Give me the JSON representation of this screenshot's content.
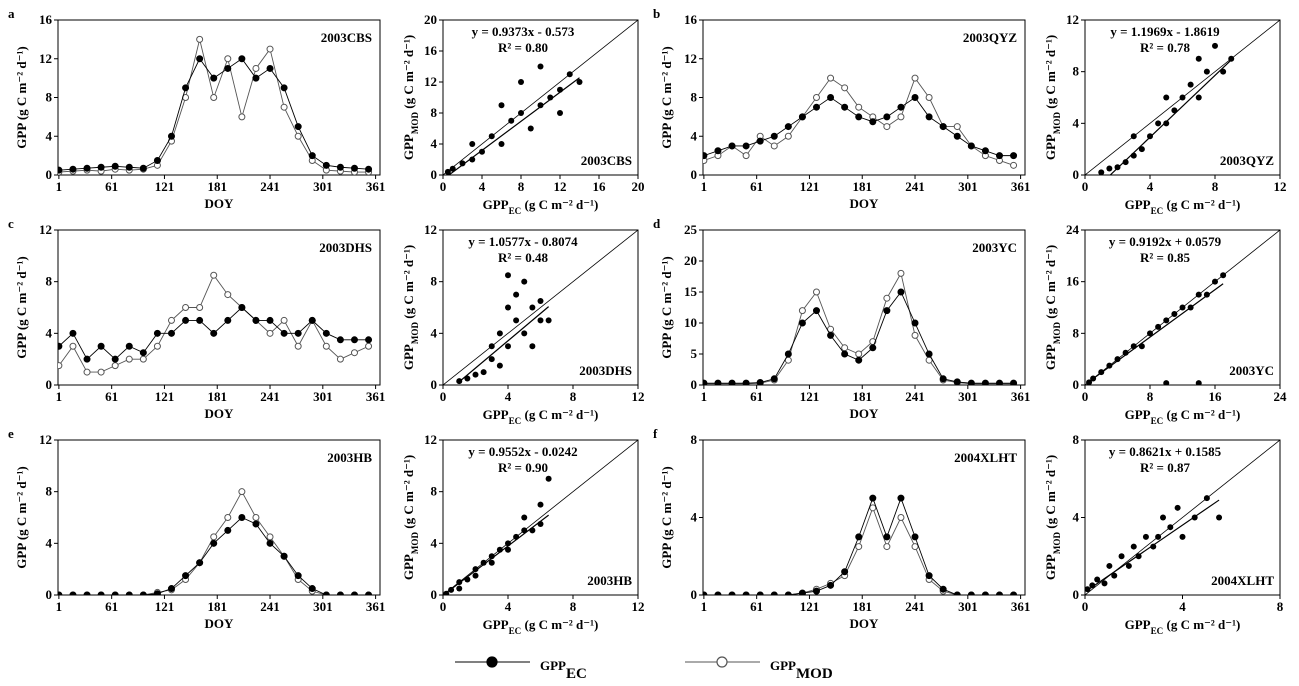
{
  "chart_data": [
    {
      "type": "line",
      "panel_label": "a",
      "site_label": "2003CBS",
      "xlabel": "DOY",
      "ylabel": "GPP (g C m⁻² d⁻¹)",
      "xlim": [
        0,
        366
      ],
      "xticks": [
        1,
        61,
        121,
        181,
        241,
        301,
        361
      ],
      "ylim": [
        0,
        16
      ],
      "yticks": [
        0,
        4,
        8,
        12,
        16
      ],
      "x": [
        1,
        17,
        33,
        49,
        65,
        81,
        97,
        113,
        129,
        145,
        161,
        177,
        193,
        209,
        225,
        241,
        257,
        273,
        289,
        305,
        321,
        337,
        353
      ],
      "series": [
        {
          "name": "GPP",
          "sub": "EC",
          "color": "#000000",
          "values": [
            0.5,
            0.6,
            0.7,
            0.8,
            0.9,
            0.8,
            0.7,
            1.5,
            4,
            9,
            12,
            10,
            11,
            12,
            10,
            11,
            9,
            5,
            2,
            1,
            0.8,
            0.7,
            0.6
          ]
        },
        {
          "name": "GPP",
          "sub": "MOD",
          "color": "#555555",
          "values": [
            0.3,
            0.4,
            0.5,
            0.4,
            0.6,
            0.5,
            0.6,
            1,
            3.5,
            8,
            14,
            8,
            12,
            6,
            11,
            13,
            7,
            4,
            1.5,
            0.5,
            0.4,
            0.3,
            0.3
          ]
        }
      ]
    },
    {
      "type": "scatter",
      "site_label": "2003CBS",
      "equation": "y = 0.9373x - 0.573",
      "r2_label": "R² = 0.80",
      "fit": {
        "slope": 0.9373,
        "intercept": -0.573
      },
      "xlabel": {
        "main": "GPP",
        "sub": "EC",
        "unit": " (g C m⁻² d⁻¹)"
      },
      "ylabel": {
        "main": "GPP",
        "sub": "MOD",
        "unit": " (g C m⁻² d⁻¹)"
      },
      "xlim": [
        0,
        20
      ],
      "xticks": [
        0,
        4,
        8,
        12,
        16,
        20
      ],
      "ylim": [
        0,
        20
      ],
      "yticks": [
        0,
        4,
        8,
        12,
        16,
        20
      ],
      "x": [
        0.5,
        1,
        2,
        3,
        4,
        5,
        6,
        7,
        8,
        8,
        9,
        10,
        10,
        11,
        12,
        12,
        13,
        14,
        3,
        6
      ],
      "y": [
        0.4,
        0.8,
        1.5,
        2,
        3,
        5,
        4,
        7,
        8,
        12,
        6,
        9,
        14,
        10,
        11,
        8,
        13,
        12,
        4,
        9
      ]
    },
    {
      "type": "line",
      "panel_label": "b",
      "site_label": "2003QYZ",
      "xlabel": "DOY",
      "ylabel": "GPP (g C m⁻² d⁻¹)",
      "xlim": [
        0,
        366
      ],
      "xticks": [
        1,
        61,
        121,
        181,
        241,
        301,
        361
      ],
      "ylim": [
        0,
        16
      ],
      "yticks": [
        0,
        4,
        8,
        12,
        16
      ],
      "x": [
        1,
        17,
        33,
        49,
        65,
        81,
        97,
        113,
        129,
        145,
        161,
        177,
        193,
        209,
        225,
        241,
        257,
        273,
        289,
        305,
        321,
        337,
        353
      ],
      "series": [
        {
          "name": "GPP",
          "sub": "EC",
          "color": "#000000",
          "values": [
            2,
            2.5,
            3,
            3,
            3.5,
            4,
            5,
            6,
            7,
            8,
            7,
            6,
            5.5,
            6,
            7,
            8,
            6,
            5,
            4,
            3,
            2.5,
            2,
            2
          ]
        },
        {
          "name": "GPP",
          "sub": "MOD",
          "color": "#555555",
          "values": [
            1.5,
            2,
            3,
            2,
            4,
            3,
            4,
            6,
            8,
            10,
            9,
            7,
            6,
            5,
            6,
            10,
            8,
            5,
            5,
            3,
            2,
            1.5,
            1
          ]
        }
      ]
    },
    {
      "type": "scatter",
      "site_label": "2003QYZ",
      "equation": "y = 1.1969x - 1.8619",
      "r2_label": "R² = 0.78",
      "fit": {
        "slope": 1.1969,
        "intercept": -1.8619
      },
      "xlabel": {
        "main": "GPP",
        "sub": "EC",
        "unit": " (g C m⁻² d⁻¹)"
      },
      "ylabel": {
        "main": "GPP",
        "sub": "MOD",
        "unit": " (g C m⁻² d⁻¹)"
      },
      "xlim": [
        0,
        12
      ],
      "xticks": [
        0,
        4,
        8,
        12
      ],
      "ylim": [
        0,
        12
      ],
      "yticks": [
        0,
        4,
        8,
        12
      ],
      "x": [
        1,
        1.5,
        2,
        2.5,
        3,
        3,
        3.5,
        4,
        4.5,
        5,
        5,
        5.5,
        6,
        6.5,
        7,
        7,
        7.5,
        8,
        8.5,
        9
      ],
      "y": [
        0.2,
        0.5,
        0.6,
        1,
        1.5,
        3,
        2,
        3,
        4,
        4,
        6,
        5,
        6,
        7,
        6,
        9,
        8,
        10,
        8,
        9
      ]
    },
    {
      "type": "line",
      "panel_label": "c",
      "site_label": "2003DHS",
      "xlabel": "DOY",
      "ylabel": "GPP (g C m⁻² d⁻¹)",
      "xlim": [
        0,
        366
      ],
      "xticks": [
        1,
        61,
        121,
        181,
        241,
        301,
        361
      ],
      "ylim": [
        0,
        12
      ],
      "yticks": [
        0,
        4,
        8,
        12
      ],
      "x": [
        1,
        17,
        33,
        49,
        65,
        81,
        97,
        113,
        129,
        145,
        161,
        177,
        193,
        209,
        225,
        241,
        257,
        273,
        289,
        305,
        321,
        337,
        353
      ],
      "series": [
        {
          "name": "GPP",
          "sub": "EC",
          "color": "#000000",
          "values": [
            3,
            4,
            2,
            3,
            2,
            3,
            2.5,
            4,
            4,
            5,
            5,
            4,
            5,
            6,
            5,
            5,
            4,
            4,
            5,
            4,
            3.5,
            3.5,
            3.5
          ]
        },
        {
          "name": "GPP",
          "sub": "MOD",
          "color": "#555555",
          "values": [
            1.5,
            3,
            1,
            1,
            1.5,
            2,
            2,
            3,
            5,
            6,
            6,
            8.5,
            7,
            6,
            5,
            4,
            5,
            3,
            5,
            3,
            2,
            2.5,
            3
          ]
        }
      ]
    },
    {
      "type": "scatter",
      "site_label": "2003DHS",
      "equation": "y = 1.0577x - 0.8074",
      "r2_label": "R² = 0.48",
      "fit": {
        "slope": 1.0577,
        "intercept": -0.8074
      },
      "xlabel": {
        "main": "GPP",
        "sub": "EC",
        "unit": " (g C m⁻² d⁻¹)"
      },
      "ylabel": {
        "main": "GPP",
        "sub": "MOD",
        "unit": " (g C m⁻² d⁻¹)"
      },
      "xlim": [
        0,
        12
      ],
      "xticks": [
        0,
        4,
        8,
        12
      ],
      "ylim": [
        0,
        12
      ],
      "yticks": [
        0,
        4,
        8,
        12
      ],
      "x": [
        1,
        1.5,
        2,
        2.5,
        3,
        3,
        3.5,
        3.5,
        4,
        4,
        4.5,
        4.5,
        5,
        5,
        5.5,
        5.5,
        6,
        6,
        6.5,
        4
      ],
      "y": [
        0.3,
        0.5,
        0.8,
        1,
        2,
        3,
        1.5,
        4,
        3,
        6,
        5,
        7,
        4,
        8,
        6,
        3,
        5,
        6.5,
        5,
        8.5
      ]
    },
    {
      "type": "line",
      "panel_label": "d",
      "site_label": "2003YC",
      "xlabel": "DOY",
      "ylabel": "GPP (g C m⁻² d⁻¹)",
      "xlim": [
        0,
        366
      ],
      "xticks": [
        1,
        61,
        121,
        181,
        241,
        301,
        361
      ],
      "ylim": [
        0,
        25
      ],
      "yticks": [
        0,
        5,
        10,
        15,
        20,
        25
      ],
      "x": [
        1,
        17,
        33,
        49,
        65,
        81,
        97,
        113,
        129,
        145,
        161,
        177,
        193,
        209,
        225,
        241,
        257,
        273,
        289,
        305,
        321,
        337,
        353
      ],
      "series": [
        {
          "name": "GPP",
          "sub": "EC",
          "color": "#000000",
          "values": [
            0.3,
            0.3,
            0.3,
            0.3,
            0.4,
            1,
            5,
            10,
            12,
            8,
            5,
            4,
            6,
            12,
            15,
            10,
            5,
            1,
            0.5,
            0.3,
            0.3,
            0.3,
            0.3
          ]
        },
        {
          "name": "GPP",
          "sub": "MOD",
          "color": "#555555",
          "values": [
            0.2,
            0.2,
            0.2,
            0.2,
            0.3,
            0.8,
            4,
            12,
            15,
            9,
            6,
            5,
            7,
            14,
            18,
            8,
            4,
            0.8,
            0.4,
            0.2,
            0.2,
            0.2,
            0.2
          ]
        }
      ]
    },
    {
      "type": "scatter",
      "site_label": "2003YC",
      "equation": "y = 0.9192x + 0.0579",
      "r2_label": "R² = 0.85",
      "fit": {
        "slope": 0.9192,
        "intercept": 0.0579
      },
      "xlabel": {
        "main": "GPP",
        "sub": "EC",
        "unit": " (g C m⁻² d⁻¹)"
      },
      "ylabel": {
        "main": "GPP",
        "sub": "MOD",
        "unit": " (g C m⁻² d⁻¹)"
      },
      "xlim": [
        0,
        24
      ],
      "xticks": [
        0,
        8,
        16,
        24
      ],
      "ylim": [
        0,
        24
      ],
      "yticks": [
        0,
        8,
        16,
        24
      ],
      "x": [
        0.5,
        1,
        2,
        3,
        4,
        5,
        6,
        7,
        8,
        9,
        10,
        11,
        12,
        13,
        14,
        15,
        16,
        17,
        10,
        14
      ],
      "y": [
        0.4,
        1,
        2,
        3,
        4,
        5,
        6,
        6,
        8,
        9,
        10,
        11,
        12,
        12,
        14,
        14,
        16,
        17,
        0.3,
        0.3
      ]
    },
    {
      "type": "line",
      "panel_label": "e",
      "site_label": "2003HB",
      "xlabel": "DOY",
      "ylabel": "GPP (g C m⁻² d⁻¹)",
      "xlim": [
        0,
        366
      ],
      "xticks": [
        1,
        61,
        121,
        181,
        241,
        301,
        361
      ],
      "ylim": [
        0,
        12
      ],
      "yticks": [
        0,
        4,
        8,
        12
      ],
      "x": [
        1,
        17,
        33,
        49,
        65,
        81,
        97,
        113,
        129,
        145,
        161,
        177,
        193,
        209,
        225,
        241,
        257,
        273,
        289,
        305,
        321,
        337,
        353
      ],
      "series": [
        {
          "name": "GPP",
          "sub": "EC",
          "color": "#000000",
          "values": [
            0,
            0,
            0,
            0,
            0,
            0,
            0,
            0.1,
            0.5,
            1.5,
            2.5,
            4,
            5,
            6,
            5.5,
            4,
            3,
            1.5,
            0.5,
            0,
            0,
            0,
            0
          ]
        },
        {
          "name": "GPP",
          "sub": "MOD",
          "color": "#555555",
          "values": [
            0,
            0,
            0,
            0,
            0,
            0,
            0,
            0.2,
            0.4,
            1.2,
            2.5,
            4.5,
            6,
            8,
            6,
            4.5,
            3,
            1.2,
            0.3,
            0,
            0,
            0,
            0
          ]
        }
      ]
    },
    {
      "type": "scatter",
      "site_label": "2003HB",
      "equation": "y = 0.9552x - 0.0242",
      "r2_label": "R² = 0.90",
      "fit": {
        "slope": 0.9552,
        "intercept": -0.0242
      },
      "xlabel": {
        "main": "GPP",
        "sub": "EC",
        "unit": " (g C m⁻² d⁻¹)"
      },
      "ylabel": {
        "main": "GPP",
        "sub": "MOD",
        "unit": " (g C m⁻² d⁻¹)"
      },
      "xlim": [
        0,
        12
      ],
      "xticks": [
        0,
        4,
        8,
        12
      ],
      "ylim": [
        0,
        12
      ],
      "yticks": [
        0,
        4,
        8,
        12
      ],
      "x": [
        0.2,
        0.5,
        1,
        1.5,
        2,
        2.5,
        3,
        3,
        3.5,
        4,
        4,
        4.5,
        5,
        5,
        5.5,
        6,
        6,
        6.5,
        1,
        2
      ],
      "y": [
        0.1,
        0.4,
        1,
        1.2,
        2,
        2.5,
        3,
        2.5,
        3.5,
        4,
        3.5,
        4.5,
        5,
        6,
        5,
        7,
        5.5,
        9,
        0.5,
        1.5
      ]
    },
    {
      "type": "line",
      "panel_label": "f",
      "site_label": "2004XLHT",
      "xlabel": "DOY",
      "ylabel": "GPP (g C m⁻² d⁻¹)",
      "xlim": [
        0,
        366
      ],
      "xticks": [
        1,
        61,
        121,
        181,
        241,
        301,
        361
      ],
      "ylim": [
        0,
        8
      ],
      "yticks": [
        0,
        4,
        8
      ],
      "x": [
        1,
        17,
        33,
        49,
        65,
        81,
        97,
        113,
        129,
        145,
        161,
        177,
        193,
        209,
        225,
        241,
        257,
        273,
        289,
        305,
        321,
        337,
        353
      ],
      "series": [
        {
          "name": "GPP",
          "sub": "EC",
          "color": "#000000",
          "values": [
            0,
            0,
            0,
            0,
            0,
            0,
            0,
            0.1,
            0.2,
            0.5,
            1.2,
            3,
            5,
            3,
            5,
            3,
            1,
            0.3,
            0,
            0,
            0,
            0,
            0
          ]
        },
        {
          "name": "GPP",
          "sub": "MOD",
          "color": "#555555",
          "values": [
            0,
            0,
            0,
            0,
            0,
            0,
            0,
            0.1,
            0.3,
            0.6,
            1,
            2.5,
            4.5,
            2.5,
            4,
            2.5,
            0.8,
            0.2,
            0,
            0,
            0,
            0,
            0
          ]
        }
      ]
    },
    {
      "type": "scatter",
      "site_label": "2004XLHT",
      "equation": "y = 0.8621x + 0.1585",
      "r2_label": "R² = 0.87",
      "fit": {
        "slope": 0.8621,
        "intercept": 0.1585
      },
      "xlabel": {
        "main": "GPP",
        "sub": "EC",
        "unit": " (g C m⁻² d⁻¹)"
      },
      "ylabel": {
        "main": "GPP",
        "sub": "MOD",
        "unit": " (g C m⁻² d⁻¹)"
      },
      "xlim": [
        0,
        8
      ],
      "xticks": [
        0,
        4,
        8
      ],
      "ylim": [
        0,
        8
      ],
      "yticks": [
        0,
        4,
        8
      ],
      "x": [
        0.1,
        0.3,
        0.5,
        0.8,
        1,
        1.2,
        1.5,
        1.8,
        2,
        2.2,
        2.5,
        2.8,
        3,
        3.2,
        3.5,
        3.8,
        4,
        4.5,
        5,
        5.5
      ],
      "y": [
        0.3,
        0.5,
        0.8,
        0.6,
        1.5,
        1,
        2,
        1.5,
        2.5,
        2,
        3,
        2.5,
        3,
        4,
        3.5,
        4.5,
        3,
        4,
        5,
        4
      ]
    }
  ]
}
